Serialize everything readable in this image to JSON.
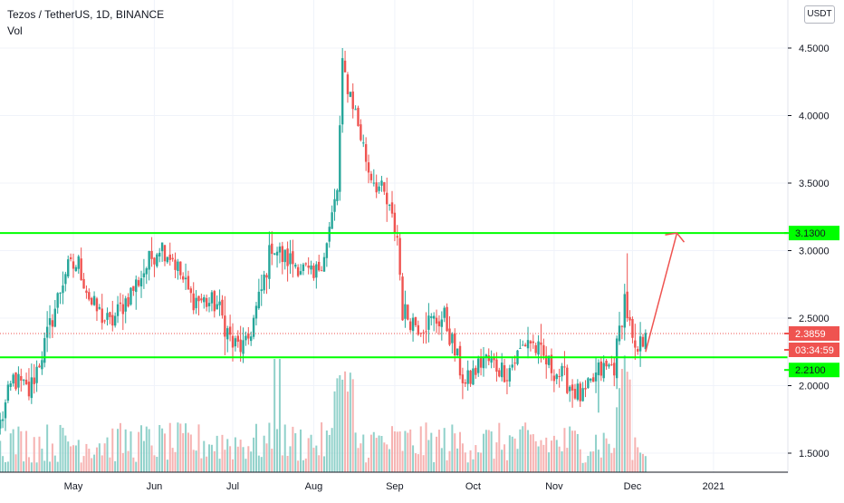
{
  "header": {
    "title": "Tezos / TetherUS, 1D, BINANCE",
    "indicator": "Vol",
    "currency_button": "USDT"
  },
  "colors": {
    "up": "#26a69a",
    "down": "#ef5350",
    "level_line": "#00ff00",
    "arrow": "#ef5350",
    "last_price": "#ef5350"
  },
  "badges": {
    "resistance": "3.1300",
    "last_price": "2.3859",
    "countdown": "03:34:59",
    "support": "2.2100"
  },
  "chart_data": {
    "type": "candlestick",
    "x": [
      "May",
      "Jun",
      "Jul",
      "Aug",
      "Sep",
      "Oct",
      "Nov",
      "Dec",
      "2021"
    ],
    "y_ticks": [
      "4.5000",
      "4.0000",
      "3.5000",
      "3.0000",
      "2.5000",
      "2.0000",
      "1.5000"
    ],
    "ylim": [
      1.38,
      4.6
    ],
    "series": [
      {
        "keypoints_close": [
          [
            "2020-04-03",
            1.72
          ],
          [
            "2020-04-08",
            2.05
          ],
          [
            "2020-04-14",
            1.95
          ],
          [
            "2020-04-20",
            2.3
          ],
          [
            "2020-04-28",
            2.85
          ],
          [
            "2020-05-03",
            2.9
          ],
          [
            "2020-05-08",
            2.6
          ],
          [
            "2020-05-15",
            2.45
          ],
          [
            "2020-05-25",
            2.75
          ],
          [
            "2020-06-03",
            3.05
          ],
          [
            "2020-06-08",
            2.95
          ],
          [
            "2020-06-15",
            2.65
          ],
          [
            "2020-06-25",
            2.6
          ],
          [
            "2020-07-01",
            2.3
          ],
          [
            "2020-07-06",
            2.28
          ],
          [
            "2020-07-12",
            2.7
          ],
          [
            "2020-07-16",
            3.05
          ],
          [
            "2020-07-20",
            2.95
          ],
          [
            "2020-07-26",
            2.9
          ],
          [
            "2020-08-01",
            2.78
          ],
          [
            "2020-08-06",
            3.05
          ],
          [
            "2020-08-10",
            3.45
          ],
          [
            "2020-08-12",
            4.35
          ],
          [
            "2020-08-16",
            4.1
          ],
          [
            "2020-08-22",
            3.6
          ],
          [
            "2020-08-28",
            3.4
          ],
          [
            "2020-09-02",
            3.1
          ],
          [
            "2020-09-04",
            2.55
          ],
          [
            "2020-09-10",
            2.45
          ],
          [
            "2020-09-20",
            2.5
          ],
          [
            "2020-09-28",
            2.0
          ],
          [
            "2020-10-05",
            2.2
          ],
          [
            "2020-10-14",
            2.1
          ],
          [
            "2020-10-22",
            2.35
          ],
          [
            "2020-10-30",
            2.15
          ],
          [
            "2020-11-05",
            2.05
          ],
          [
            "2020-11-12",
            1.9
          ],
          [
            "2020-11-18",
            2.1
          ],
          [
            "2020-11-24",
            2.15
          ],
          [
            "2020-11-28",
            2.65
          ],
          [
            "2020-12-02",
            2.2
          ],
          [
            "2020-12-06",
            2.39
          ]
        ]
      }
    ],
    "horizontal_levels": [
      3.13,
      2.21
    ],
    "last_price": 2.3859,
    "projection_arrow": {
      "from": [
        "2020-12-06",
        2.25
      ],
      "to": [
        "2020-12-18",
        3.13
      ]
    },
    "grid": true,
    "legend": "none"
  }
}
